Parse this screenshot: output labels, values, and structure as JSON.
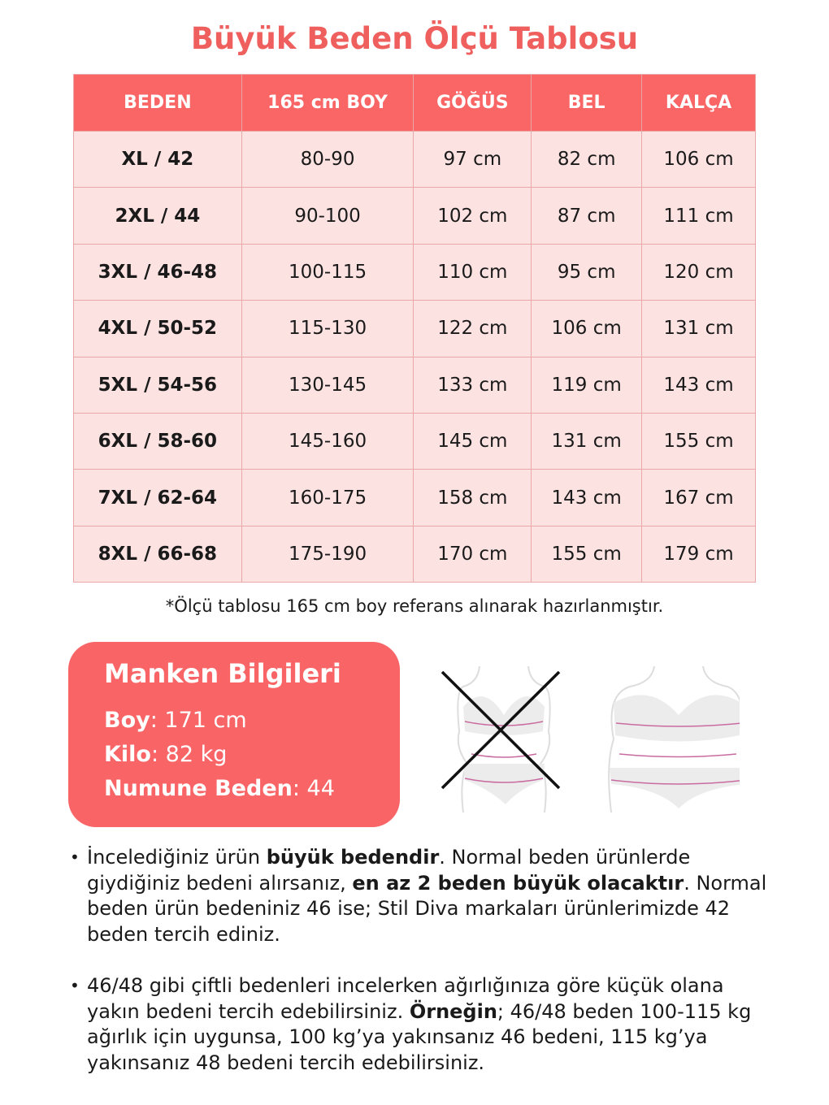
{
  "title": "Büyük Beden Ölçü Tablosu",
  "table": {
    "headers": [
      "BEDEN",
      "165 cm BOY",
      "GÖĞÜS",
      "BEL",
      "KALÇA"
    ],
    "rows": [
      [
        "XL / 42",
        "80-90",
        "97 cm",
        "82 cm",
        "106 cm"
      ],
      [
        "2XL / 44",
        "90-100",
        "102 cm",
        "87 cm",
        "111 cm"
      ],
      [
        "3XL / 46-48",
        "100-115",
        "110 cm",
        "95 cm",
        "120 cm"
      ],
      [
        "4XL / 50-52",
        "115-130",
        "122 cm",
        "106 cm",
        "131 cm"
      ],
      [
        "5XL / 54-56",
        "130-145",
        "133 cm",
        "119 cm",
        "143 cm"
      ],
      [
        "6XL / 58-60",
        "145-160",
        "145 cm",
        "131 cm",
        "155 cm"
      ],
      [
        "7XL / 62-64",
        "160-175",
        "158 cm",
        "143 cm",
        "167 cm"
      ],
      [
        "8XL / 66-68",
        "175-190",
        "170 cm",
        "155 cm",
        "179 cm"
      ]
    ]
  },
  "note": "*Ölçü tablosu 165 cm boy referans alınarak hazırlanmıştır.",
  "manken": {
    "title": "Manken Bilgileri",
    "items": [
      {
        "label": "Boy",
        "value": ": 171 cm"
      },
      {
        "label": "Kilo",
        "value": ": 82 kg"
      },
      {
        "label": "Numune Beden",
        "value": ": 44"
      }
    ]
  },
  "figures": {
    "wrong_icon": "crossed-out-body-measurement",
    "right_icon": "body-measurement"
  },
  "bullets": [
    [
      {
        "t": "İncelediğiniz ürün "
      },
      {
        "t": "büyük bedendir",
        "b": true
      },
      {
        "t": ". Normal beden ürünlerde giydiğiniz bedeni alırsanız, "
      },
      {
        "t": "en az 2 beden büyük olacaktır",
        "b": true
      },
      {
        "t": ". Normal beden ürün bedeniniz 46 ise; Stil Diva markaları ürünlerimizde 42 beden tercih ediniz."
      }
    ],
    [
      {
        "t": "46/48 gibi çiftli bedenleri incelerken ağırlığınıza göre küçük olana yakın bedeni tercih edebilirsiniz. "
      },
      {
        "t": "Örneğin",
        "b": true
      },
      {
        "t": "; 46/48 beden 100-115 kg ağırlık için uygunsa, 100 kg’ya yakınsanız 46 bedeni, 115 kg’ya yakınsanız 48 bedeni tercih edebilirsiniz."
      }
    ]
  ],
  "colors": {
    "accent": "#fa6566",
    "title": "#ef5f5e",
    "row": "#fde2e2",
    "border": "#e9a7a8"
  }
}
